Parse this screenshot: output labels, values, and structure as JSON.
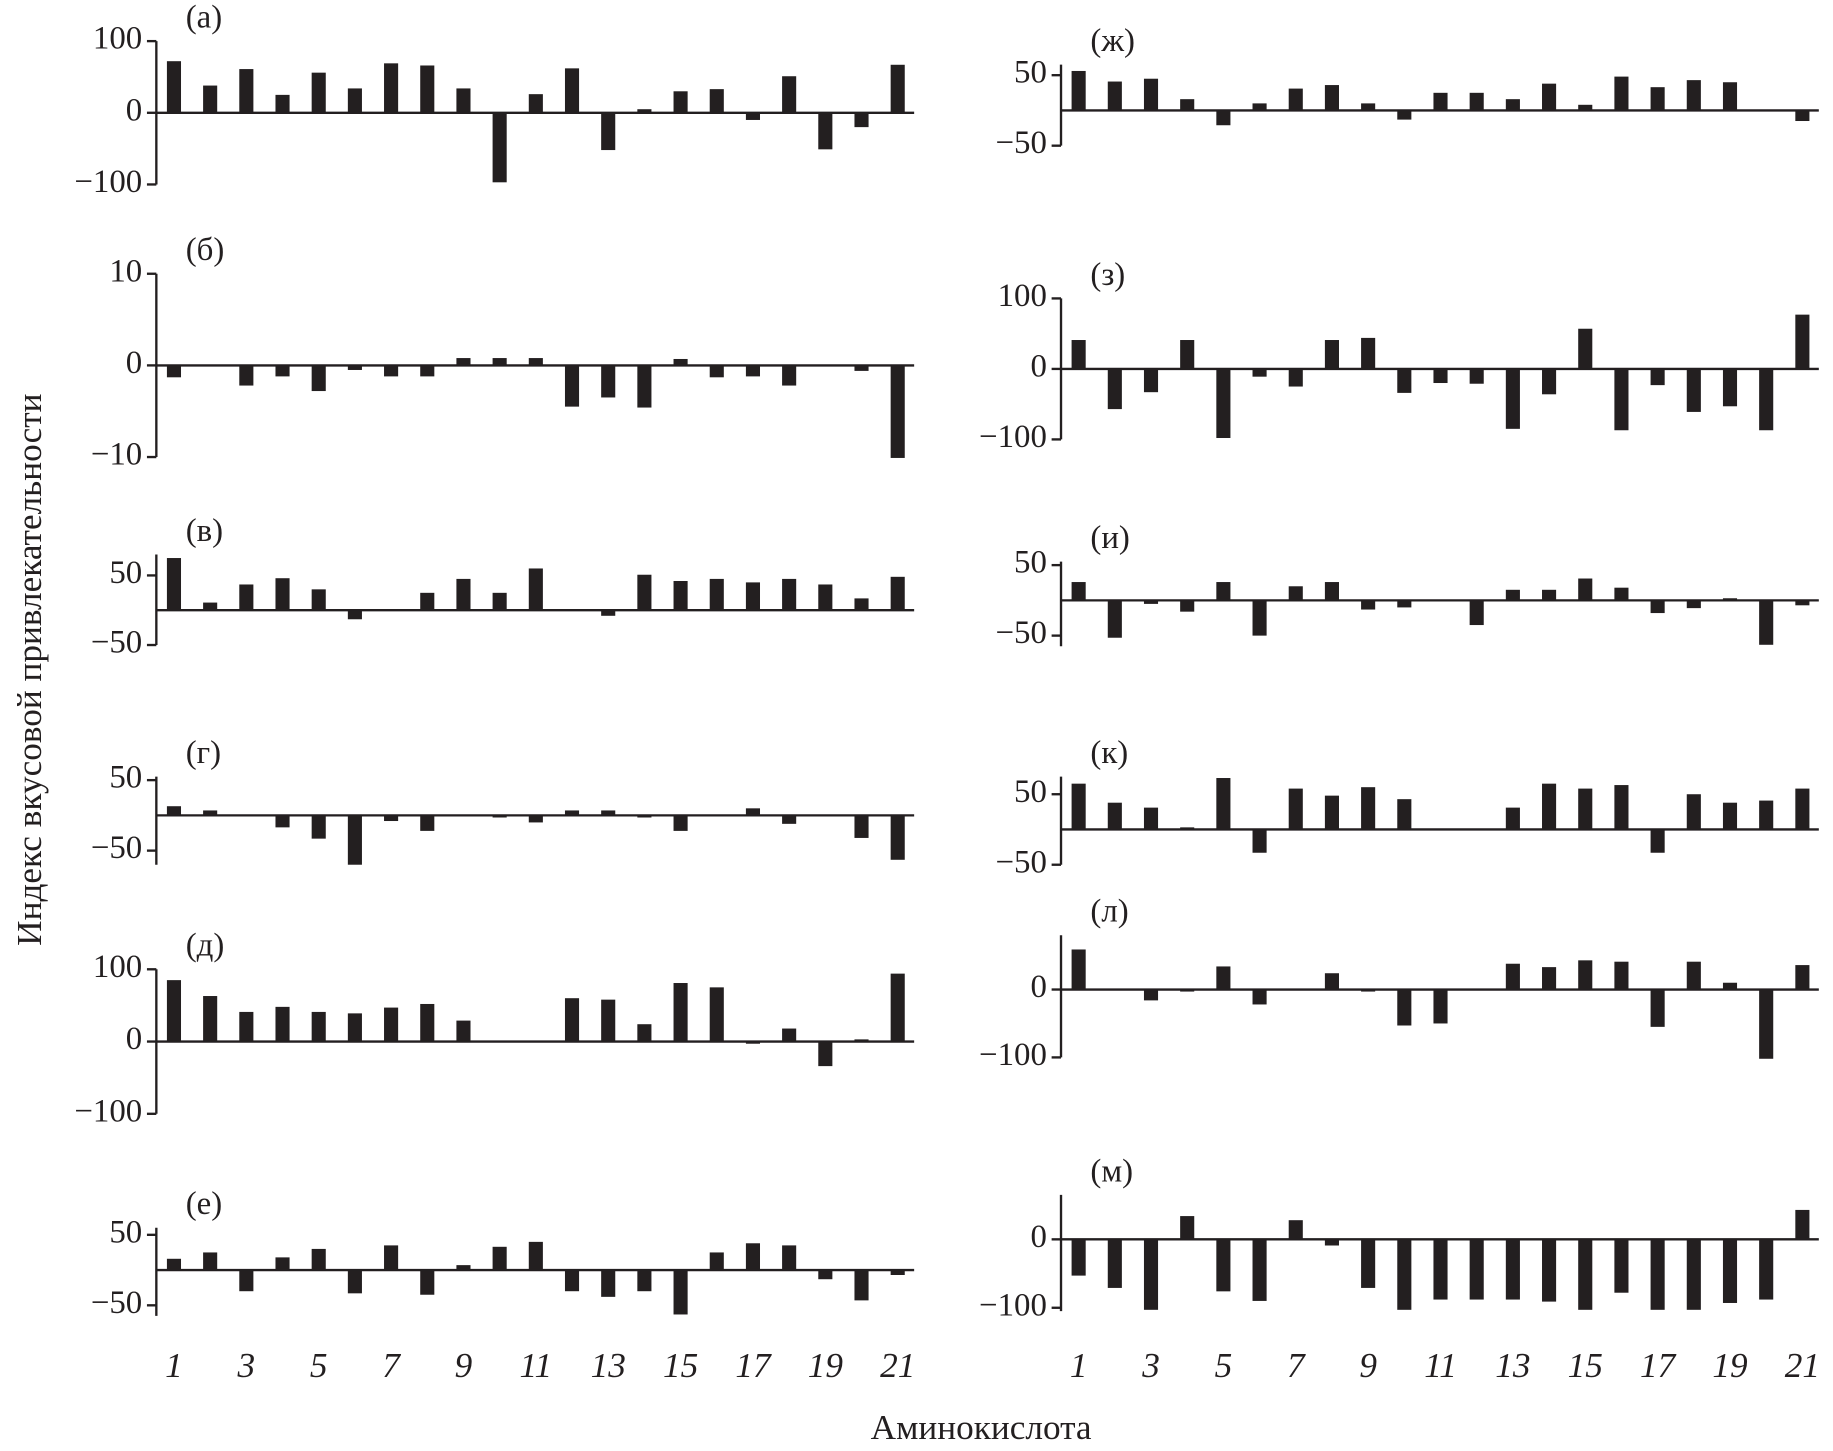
{
  "y_label": "Индекс вкусовой привлекательности",
  "x_label": "Аминокислота",
  "chart_data": [
    {
      "type": "bar",
      "title": "(а)",
      "color": "#231f20",
      "ylim": [
        -100,
        100
      ],
      "yticks": [
        {
          "value": -100,
          "label": "−100"
        },
        0,
        100
      ],
      "values": [
        72,
        38,
        61,
        25,
        56,
        34,
        69,
        66,
        34,
        -97,
        26,
        62,
        -52,
        5,
        30,
        33,
        -10,
        51,
        -51,
        -20,
        67
      ]
    },
    {
      "type": "bar",
      "title": "(б)",
      "color": "#231f20",
      "ylim": [
        -10,
        10
      ],
      "yticks": [
        {
          "value": -10,
          "label": "−10"
        },
        0,
        10
      ],
      "values": [
        -1.3,
        0,
        -2.2,
        -1.2,
        -2.8,
        -0.5,
        -1.2,
        -1.2,
        0.8,
        0.8,
        0.8,
        -4.5,
        -3.5,
        -4.6,
        0.7,
        -1.3,
        -1.2,
        -2.2,
        0,
        -0.6,
        -10.1
      ]
    },
    {
      "type": "bar",
      "title": "(в)",
      "color": "#231f20",
      "ylim": [
        -50,
        80
      ],
      "yticks": [
        {
          "value": -50,
          "label": "−50"
        },
        50
      ],
      "values": [
        75,
        11,
        37,
        46,
        30,
        -13,
        0,
        25,
        45,
        25,
        60,
        0,
        -8,
        51,
        42,
        45,
        40,
        45,
        37,
        17,
        48
      ]
    },
    {
      "type": "bar",
      "title": "(г)",
      "color": "#231f20",
      "ylim": [
        -70,
        55
      ],
      "yticks": [
        {
          "value": -50,
          "label": "−50"
        },
        50
      ],
      "values": [
        13,
        7,
        0,
        -17,
        -33,
        -70,
        -8,
        -22,
        0,
        -3,
        -10,
        7,
        7,
        -3,
        -22,
        0,
        10,
        -12,
        0,
        -32,
        -63
      ]
    },
    {
      "type": "bar",
      "title": "(д)",
      "color": "#231f20",
      "ylim": [
        -100,
        100
      ],
      "yticks": [
        {
          "value": -100,
          "label": "−100"
        },
        0,
        100
      ],
      "values": [
        85,
        63,
        41,
        48,
        41,
        39,
        47,
        52,
        29,
        0,
        0,
        60,
        58,
        24,
        81,
        75,
        -3,
        18,
        -34,
        3,
        94
      ]
    },
    {
      "type": "bar",
      "title": "(е)",
      "color": "#231f20",
      "ylim": [
        -65,
        60
      ],
      "yticks": [
        {
          "value": -50,
          "label": "−50"
        },
        50
      ],
      "categories": [
        "1",
        null,
        "3",
        null,
        "5",
        null,
        "7",
        null,
        "9",
        null,
        "11",
        null,
        "13",
        null,
        "15",
        null,
        "17",
        null,
        "19",
        null,
        "21"
      ],
      "values": [
        16,
        25,
        -30,
        18,
        30,
        -33,
        35,
        -35,
        7,
        33,
        40,
        -30,
        -38,
        -30,
        -63,
        25,
        38,
        35,
        -13,
        -43,
        -7
      ]
    },
    {
      "type": "bar",
      "title": "(ж)",
      "color": "#231f20",
      "ylim": [
        -50,
        65
      ],
      "yticks": [
        {
          "value": -50,
          "label": "−50"
        },
        50
      ],
      "values": [
        56,
        41,
        45,
        16,
        -21,
        10,
        31,
        36,
        10,
        -13,
        25,
        25,
        16,
        38,
        8,
        48,
        33,
        43,
        40,
        0,
        -15
      ]
    },
    {
      "type": "bar",
      "title": "(з)",
      "color": "#231f20",
      "ylim": [
        -100,
        100
      ],
      "yticks": [
        {
          "value": -100,
          "label": "−100"
        },
        0,
        100
      ],
      "values": [
        41,
        -57,
        -33,
        41,
        -98,
        -11,
        -25,
        41,
        44,
        -34,
        -20,
        -21,
        -85,
        -36,
        57,
        -87,
        -23,
        -61,
        -53,
        -87,
        77
      ]
    },
    {
      "type": "bar",
      "title": "(и)",
      "color": "#231f20",
      "ylim": [
        -65,
        55
      ],
      "yticks": [
        {
          "value": -50,
          "label": "−50"
        },
        50
      ],
      "values": [
        26,
        -53,
        -5,
        -16,
        26,
        -50,
        20,
        26,
        -13,
        -10,
        0,
        -35,
        15,
        15,
        31,
        18,
        -18,
        -11,
        3,
        -63,
        -7
      ]
    },
    {
      "type": "bar",
      "title": "(к)",
      "color": "#231f20",
      "ylim": [
        -50,
        75
      ],
      "yticks": [
        {
          "value": -50,
          "label": "−50"
        },
        50
      ],
      "values": [
        65,
        38,
        31,
        3,
        73,
        -33,
        58,
        48,
        60,
        43,
        0,
        0,
        31,
        65,
        58,
        63,
        -33,
        50,
        38,
        41,
        58
      ]
    },
    {
      "type": "bar",
      "title": "(л)",
      "color": "#231f20",
      "ylim": [
        -100,
        80
      ],
      "yticks": [
        {
          "value": -100,
          "label": "−100"
        },
        0
      ],
      "values": [
        59,
        0,
        -16,
        -3,
        34,
        -22,
        0,
        24,
        -3,
        -53,
        -50,
        0,
        38,
        33,
        43,
        41,
        -55,
        41,
        10,
        -102,
        36
      ]
    },
    {
      "type": "bar",
      "title": "(м)",
      "color": "#231f20",
      "ylim": [
        -105,
        65
      ],
      "yticks": [
        {
          "value": -100,
          "label": "−100"
        },
        0
      ],
      "categories": [
        "1",
        null,
        "3",
        null,
        "5",
        null,
        "7",
        null,
        "9",
        null,
        "11",
        null,
        "13",
        null,
        "15",
        null,
        "17",
        null,
        "19",
        null,
        "21"
      ],
      "values": [
        -53,
        -71,
        -103,
        34,
        -76,
        -90,
        28,
        -9,
        -71,
        -103,
        -88,
        -88,
        -88,
        -91,
        -103,
        -78,
        -103,
        -103,
        -93,
        -88,
        43
      ]
    }
  ]
}
